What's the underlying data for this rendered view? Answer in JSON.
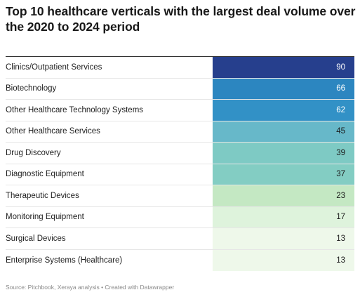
{
  "title": "Top 10 healthcare verticals with the largest deal volume over the 2020 to 2024 period",
  "source": "Source: Pitchbook, Xeraya analysis • Created with Datawrapper",
  "chart_data": {
    "type": "table",
    "categories": [
      "Clinics/Outpatient Services",
      "Biotechnology",
      "Other Healthcare Technology Systems",
      "Other Healthcare Services",
      "Drug Discovery",
      "Diagnostic Equipment",
      "Therapeutic Devices",
      "Monitoring Equipment",
      "Surgical Devices",
      "Enterprise Systems (Healthcare)"
    ],
    "values": [
      90,
      66,
      62,
      45,
      39,
      37,
      23,
      17,
      13,
      13
    ],
    "cell_colors": [
      "#263f8d",
      "#2c86c0",
      "#3291c6",
      "#67b8c9",
      "#7ecac4",
      "#83cdc3",
      "#c4e8c3",
      "#def3dc",
      "#eef8ea",
      "#eef8ea"
    ],
    "text_colors": [
      "#ffffff",
      "#ffffff",
      "#ffffff",
      "#1a1a1a",
      "#1a1a1a",
      "#1a1a1a",
      "#1a1a1a",
      "#1a1a1a",
      "#1a1a1a",
      "#1a1a1a"
    ]
  }
}
